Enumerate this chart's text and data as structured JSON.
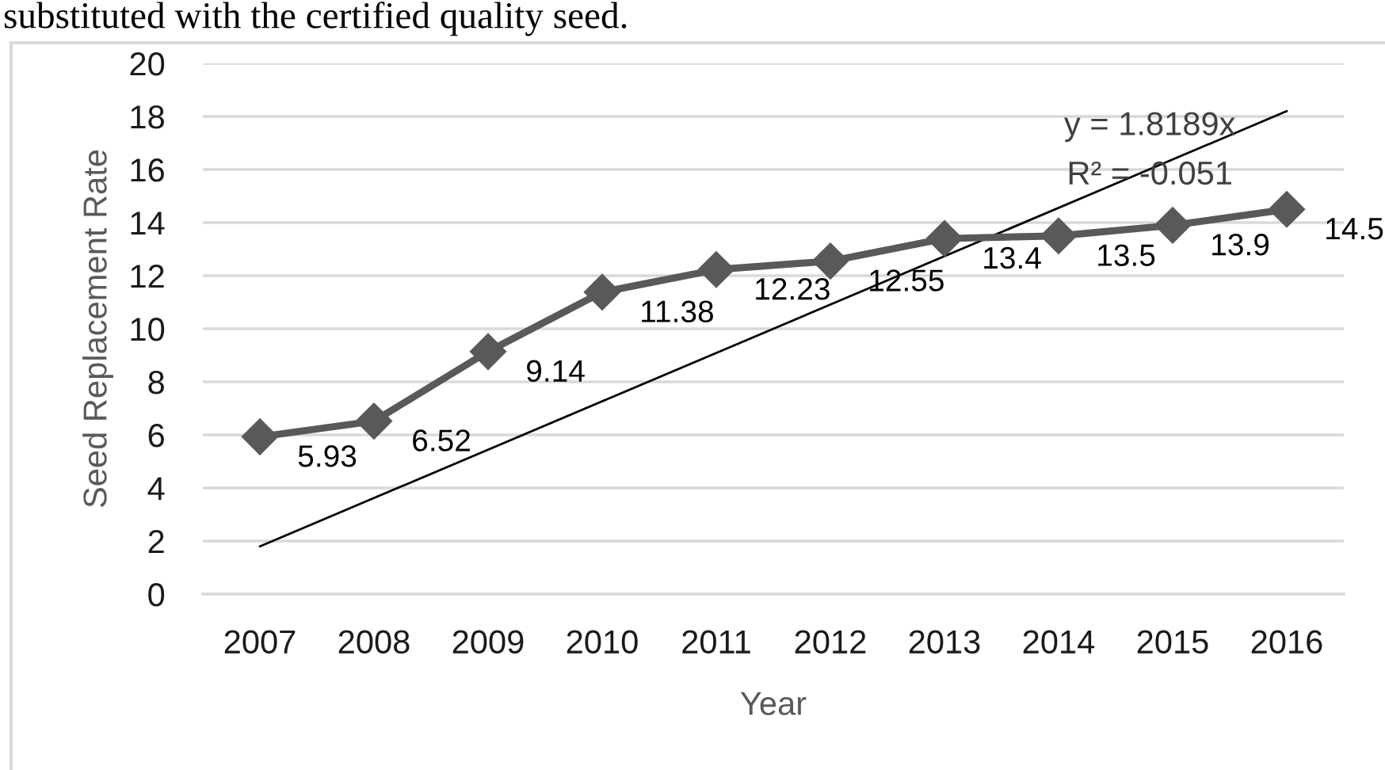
{
  "chart_data": {
    "type": "line",
    "xlabel": "Year",
    "ylabel": "Seed Replacement Rate",
    "x": [
      2007,
      2008,
      2009,
      2010,
      2011,
      2012,
      2013,
      2014,
      2015,
      2016
    ],
    "xlim": [
      2006.5,
      2016.5
    ],
    "xticks": [
      2007,
      2008,
      2009,
      2010,
      2011,
      2012,
      2013,
      2014,
      2015,
      2016
    ],
    "ylim": [
      0,
      20
    ],
    "yticks": [
      0,
      2,
      4,
      6,
      8,
      10,
      12,
      14,
      16,
      18,
      20
    ],
    "series": [
      {
        "color": "#595959",
        "marker": "diamond",
        "values": [
          5.93,
          6.52,
          9.14,
          11.38,
          12.23,
          12.55,
          13.4,
          13.5,
          13.9,
          14.5
        ],
        "value_labels": [
          "5.93",
          "6.52",
          "9.14",
          "11.38",
          "12.23",
          "12.55",
          "13.4",
          "13.5",
          "13.9",
          "14.5"
        ]
      },
      {
        "color": "#000000",
        "x": [
          2007,
          2016
        ],
        "values": [
          1.8,
          18.2
        ]
      }
    ],
    "grid": "y",
    "annotations": [
      "y = 1.8189x",
      "R² = -0.051",
      "substituted with the certified quality seed."
    ]
  }
}
